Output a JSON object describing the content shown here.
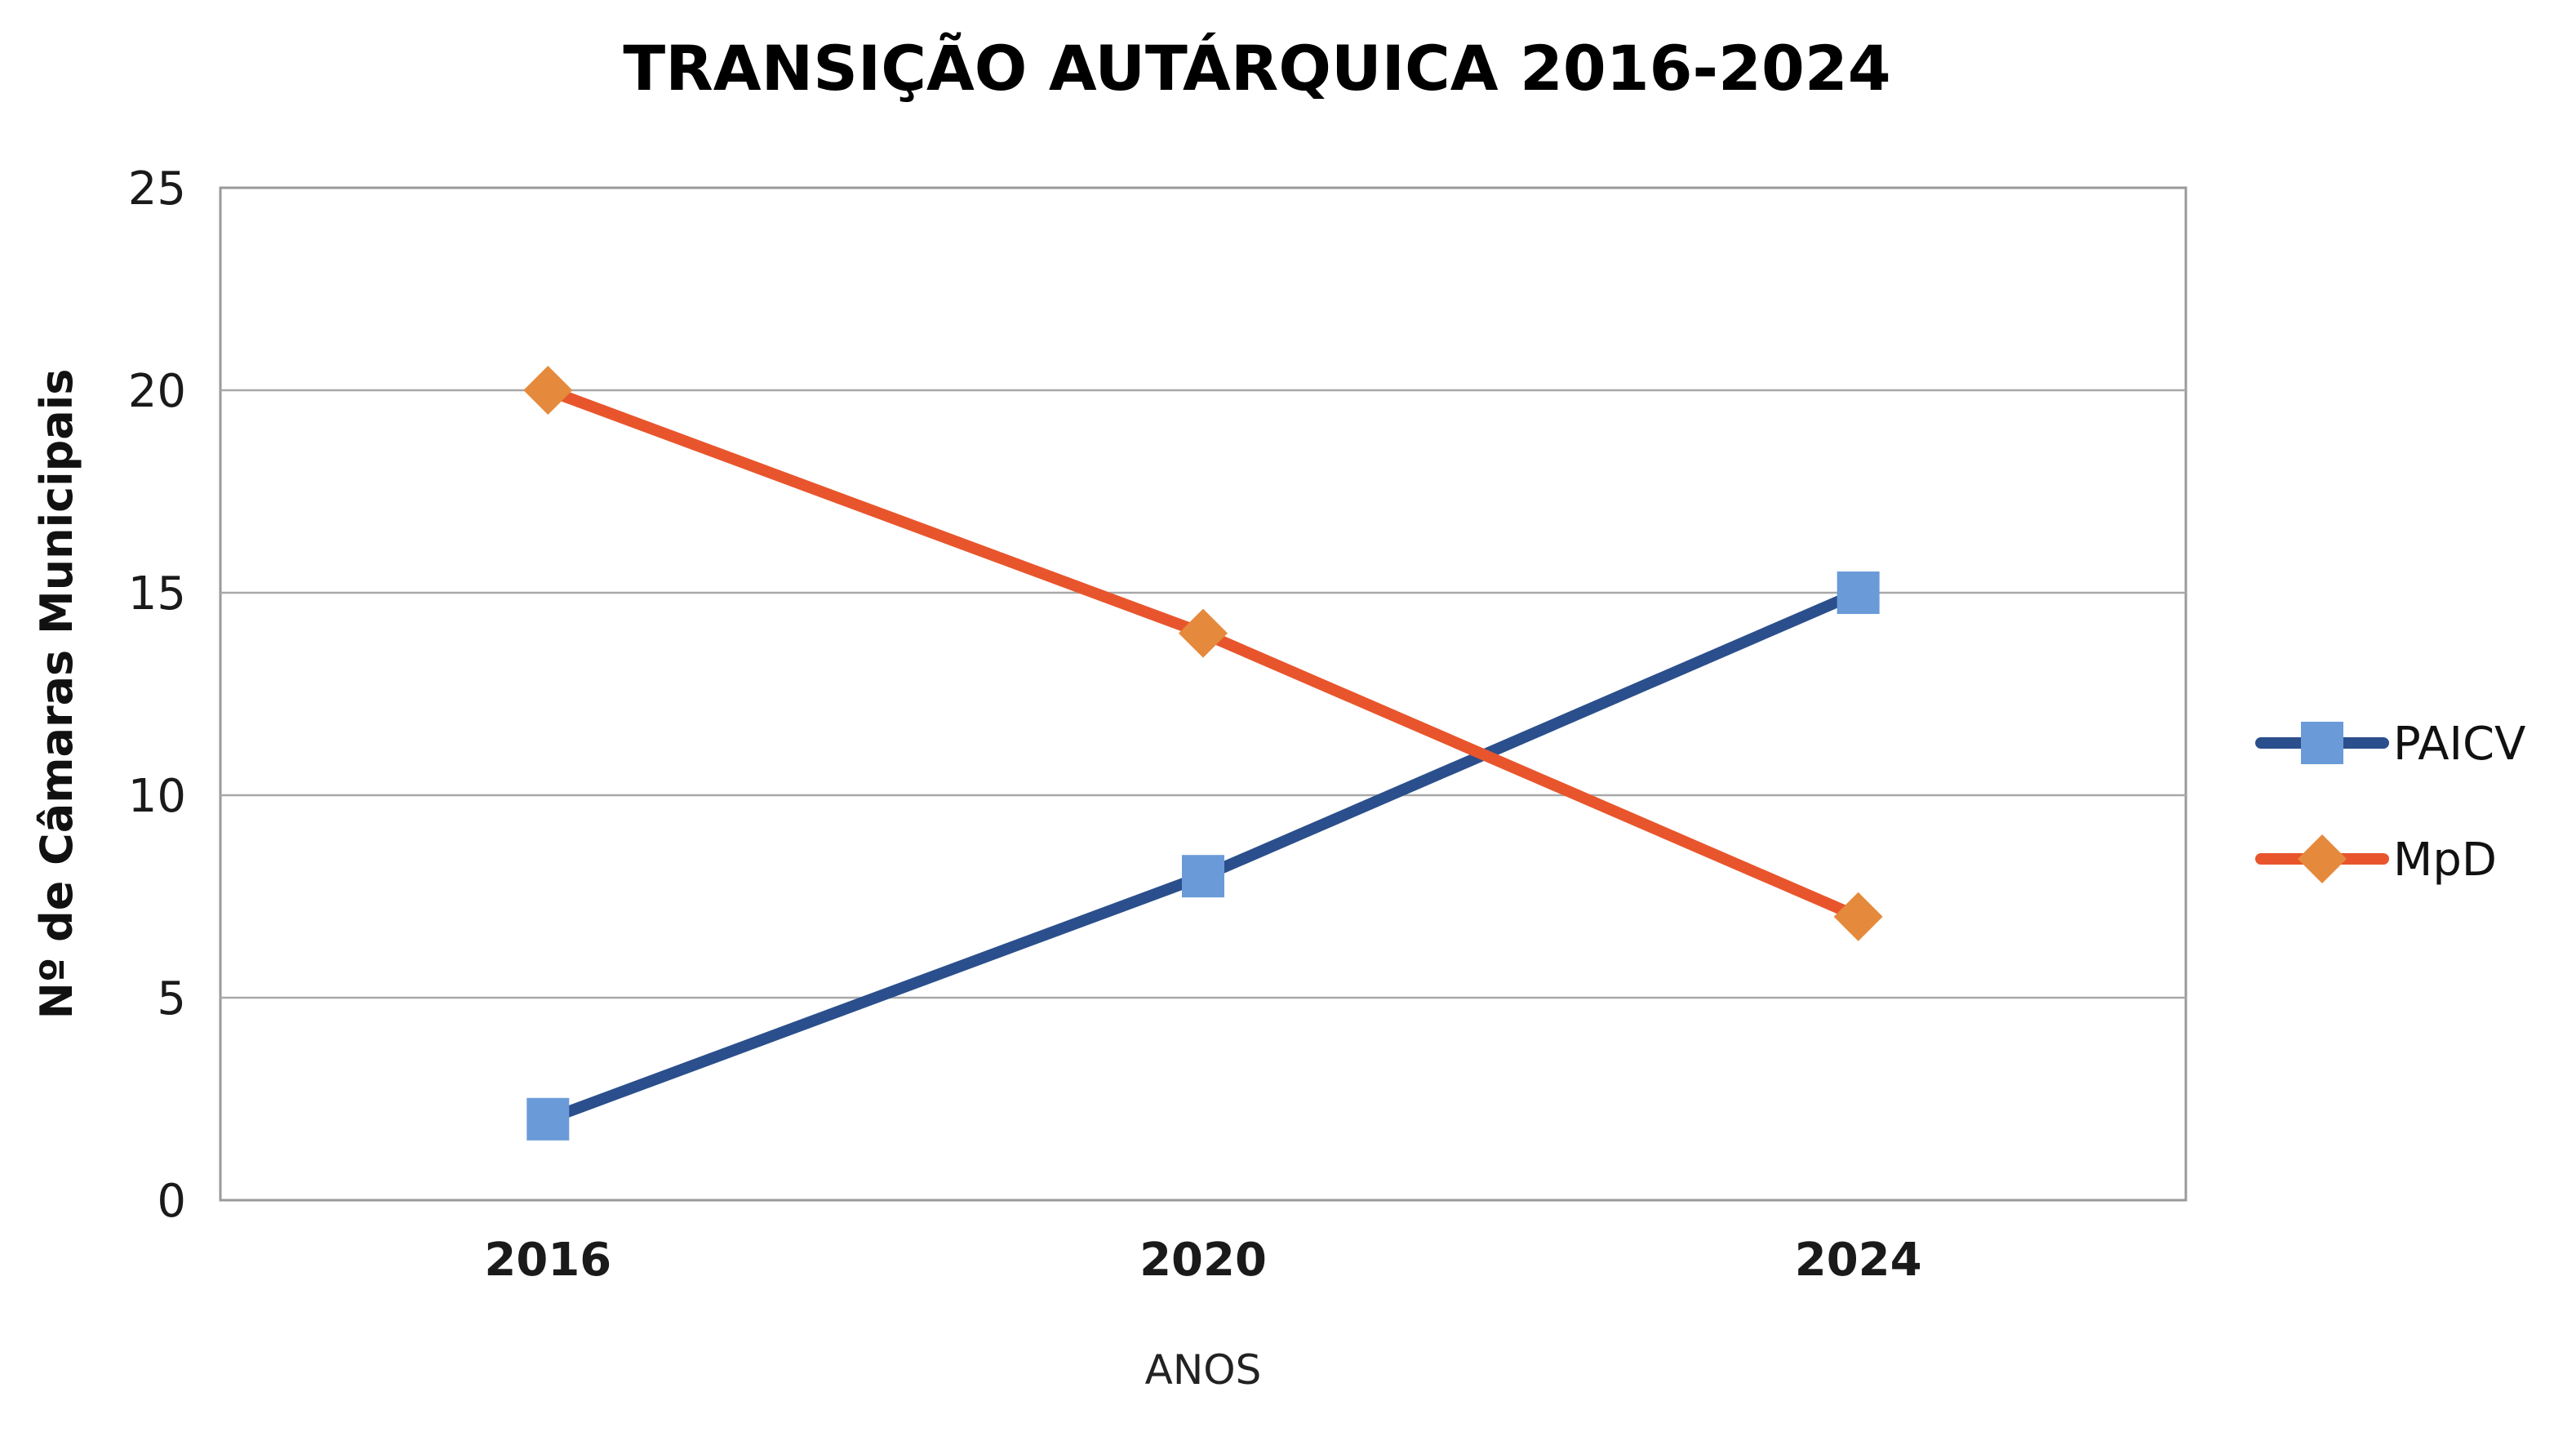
{
  "chart_data": {
    "type": "line",
    "title": "TRANSIÇÃO AUTÁRQUICA 2016-2024",
    "xlabel": "ANOS",
    "ylabel": "Nº de Câmaras Municipais",
    "categories": [
      "2016",
      "2020",
      "2024"
    ],
    "ylim": [
      0,
      25
    ],
    "yticks": [
      0,
      5,
      10,
      15,
      20,
      25
    ],
    "grid": true,
    "legend_position": "right",
    "series": [
      {
        "name": "PAICV",
        "values": [
          2,
          8,
          15
        ],
        "line_color": "#2b4f8c",
        "marker_color": "#6a9bd8",
        "marker": "square"
      },
      {
        "name": "MpD",
        "values": [
          20,
          14,
          7
        ],
        "line_color": "#e8552c",
        "marker_color": "#e58a3c",
        "marker": "diamond"
      }
    ]
  }
}
